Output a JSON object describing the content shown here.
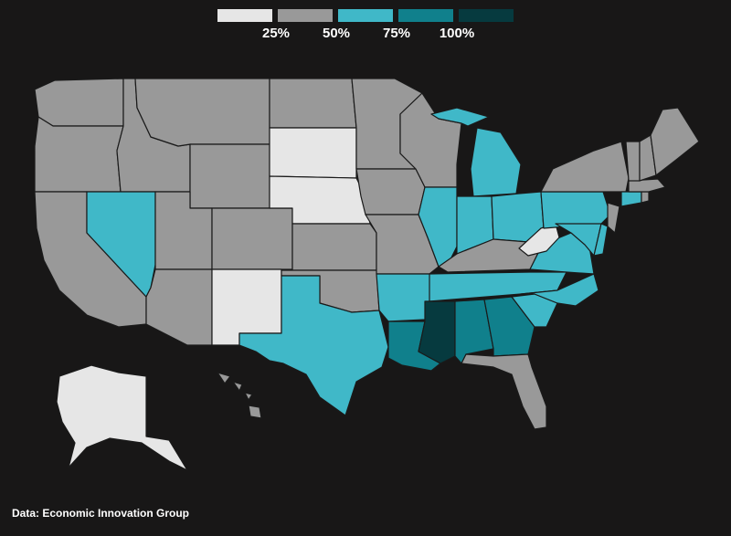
{
  "legend": {
    "swatches": [
      {
        "color": "#e6e6e6"
      },
      {
        "color": "#999999"
      },
      {
        "color": "#40b8c8"
      },
      {
        "color": "#10808c"
      },
      {
        "color": "#063a3f"
      }
    ],
    "ticks": [
      "25%",
      "50%",
      "75%",
      "100%"
    ]
  },
  "colors": {
    "background": "#181717",
    "bin1": "#e6e6e6",
    "bin2": "#999999",
    "bin3": "#40b8c8",
    "bin4": "#10808c",
    "bin5": "#063a3f"
  },
  "states": [
    {
      "name": "WA",
      "bin": 2
    },
    {
      "name": "OR",
      "bin": 2
    },
    {
      "name": "CA",
      "bin": 2
    },
    {
      "name": "ID",
      "bin": 2
    },
    {
      "name": "NV",
      "bin": 3
    },
    {
      "name": "MT",
      "bin": 2
    },
    {
      "name": "WY",
      "bin": 2
    },
    {
      "name": "UT",
      "bin": 2
    },
    {
      "name": "AZ",
      "bin": 2
    },
    {
      "name": "CO",
      "bin": 2
    },
    {
      "name": "NM",
      "bin": 1
    },
    {
      "name": "ND",
      "bin": 2
    },
    {
      "name": "SD",
      "bin": 1
    },
    {
      "name": "NE",
      "bin": 1
    },
    {
      "name": "KS",
      "bin": 2
    },
    {
      "name": "OK",
      "bin": 2
    },
    {
      "name": "TX",
      "bin": 3
    },
    {
      "name": "MN",
      "bin": 2
    },
    {
      "name": "IA",
      "bin": 2
    },
    {
      "name": "MO",
      "bin": 2
    },
    {
      "name": "AR",
      "bin": 3
    },
    {
      "name": "LA",
      "bin": 4
    },
    {
      "name": "WI",
      "bin": 2
    },
    {
      "name": "IL",
      "bin": 3
    },
    {
      "name": "MI",
      "bin": 3
    },
    {
      "name": "IN",
      "bin": 3
    },
    {
      "name": "OH",
      "bin": 3
    },
    {
      "name": "KY",
      "bin": 2
    },
    {
      "name": "TN",
      "bin": 3
    },
    {
      "name": "MS",
      "bin": 5
    },
    {
      "name": "AL",
      "bin": 4
    },
    {
      "name": "GA",
      "bin": 4
    },
    {
      "name": "FL",
      "bin": 2
    },
    {
      "name": "SC",
      "bin": 3
    },
    {
      "name": "NC",
      "bin": 3
    },
    {
      "name": "VA",
      "bin": 3
    },
    {
      "name": "WV",
      "bin": 1
    },
    {
      "name": "PA",
      "bin": 3
    },
    {
      "name": "NY",
      "bin": 2
    },
    {
      "name": "MD",
      "bin": 3
    },
    {
      "name": "DE",
      "bin": 3
    },
    {
      "name": "NJ",
      "bin": 2
    },
    {
      "name": "CT",
      "bin": 3
    },
    {
      "name": "RI",
      "bin": 2
    },
    {
      "name": "MA",
      "bin": 2
    },
    {
      "name": "VT",
      "bin": 2
    },
    {
      "name": "NH",
      "bin": 2
    },
    {
      "name": "ME",
      "bin": 2
    },
    {
      "name": "AK",
      "bin": 1
    },
    {
      "name": "HI",
      "bin": 2
    }
  ],
  "source": "Data: Economic Innovation Group"
}
